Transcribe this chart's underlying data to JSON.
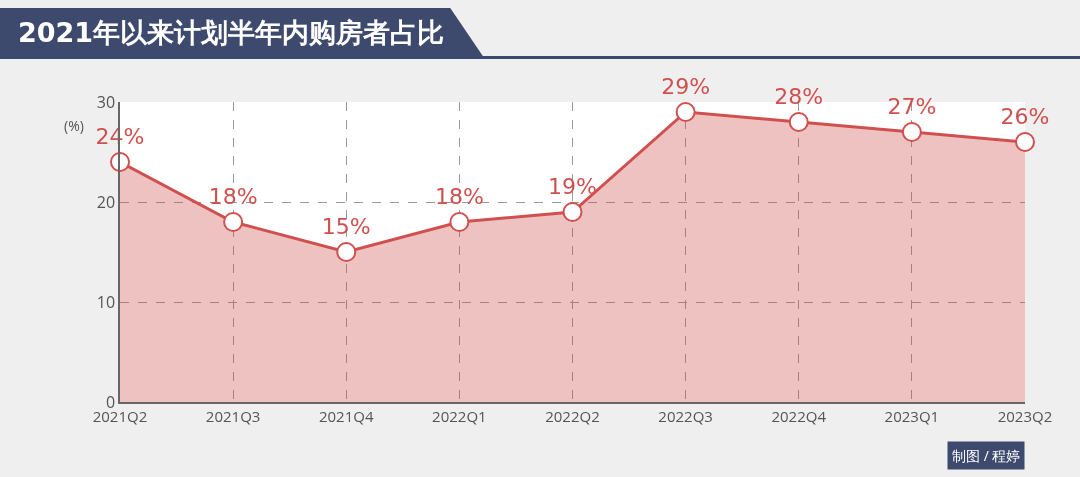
{
  "chart_data": {
    "type": "area",
    "title": "2021年以来计划半年内购房者占比",
    "ylabel": "(%)",
    "categories": [
      "2021Q2",
      "2021Q3",
      "2021Q4",
      "2022Q1",
      "2022Q2",
      "2022Q3",
      "2022Q4",
      "2023Q1",
      "2023Q2"
    ],
    "series": [
      {
        "color": "#d0504f",
        "values": [
          24,
          18,
          15,
          18,
          19,
          29,
          28,
          27,
          26
        ],
        "value_labels": [
          "24%",
          "18%",
          "15%",
          "18%",
          "19%",
          "29%",
          "28%",
          "27%",
          "26%"
        ]
      }
    ],
    "ylim": [
      0,
      30
    ],
    "yticks": [
      0,
      10,
      20,
      30
    ],
    "grid": true,
    "legend": false,
    "marker": "circle",
    "line_style": "solid",
    "annotations": [
      "制图 / 程婷"
    ]
  }
}
